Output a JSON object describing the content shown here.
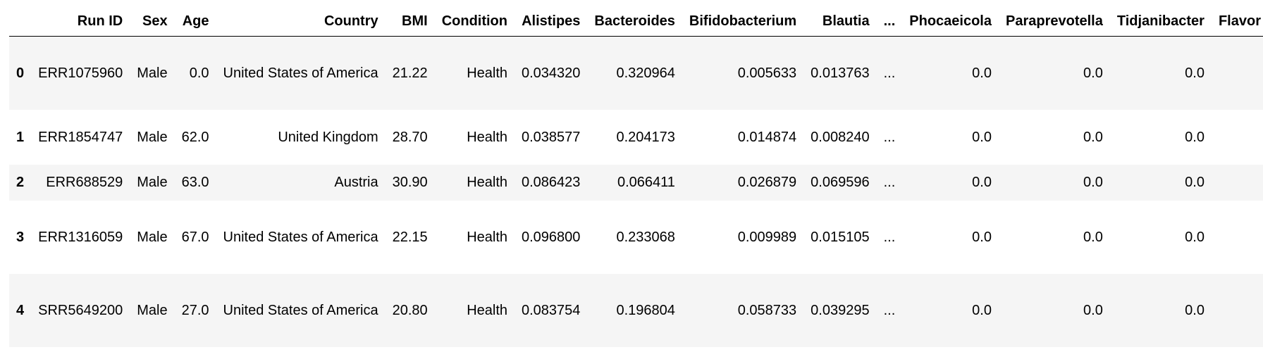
{
  "table": {
    "columns": [
      "Run ID",
      "Sex",
      "Age",
      "Country",
      "BMI",
      "Condition",
      "Alistipes",
      "Bacteroides",
      "Bifidobacterium",
      "Blautia",
      "...",
      "Phocaeicola",
      "Paraprevotella",
      "Tidjanibacter",
      "Flavor"
    ],
    "rows": [
      {
        "index": "0",
        "run_id": "ERR1075960",
        "sex": "Male",
        "age": "0.0",
        "country": "United States of America",
        "bmi": "21.22",
        "condition": "Health",
        "alistipes": "0.034320",
        "bacteroides": "0.320964",
        "bifidobacterium": "0.005633",
        "blautia": "0.013763",
        "ellipsis": "...",
        "phocaeicola": "0.0",
        "paraprevotella": "0.0",
        "tidjanibacter": "0.0"
      },
      {
        "index": "1",
        "run_id": "ERR1854747",
        "sex": "Male",
        "age": "62.0",
        "country": "United Kingdom",
        "bmi": "28.70",
        "condition": "Health",
        "alistipes": "0.038577",
        "bacteroides": "0.204173",
        "bifidobacterium": "0.014874",
        "blautia": "0.008240",
        "ellipsis": "...",
        "phocaeicola": "0.0",
        "paraprevotella": "0.0",
        "tidjanibacter": "0.0"
      },
      {
        "index": "2",
        "run_id": "ERR688529",
        "sex": "Male",
        "age": "63.0",
        "country": "Austria",
        "bmi": "30.90",
        "condition": "Health",
        "alistipes": "0.086423",
        "bacteroides": "0.066411",
        "bifidobacterium": "0.026879",
        "blautia": "0.069596",
        "ellipsis": "...",
        "phocaeicola": "0.0",
        "paraprevotella": "0.0",
        "tidjanibacter": "0.0"
      },
      {
        "index": "3",
        "run_id": "ERR1316059",
        "sex": "Male",
        "age": "67.0",
        "country": "United States of America",
        "bmi": "22.15",
        "condition": "Health",
        "alistipes": "0.096800",
        "bacteroides": "0.233068",
        "bifidobacterium": "0.009989",
        "blautia": "0.015105",
        "ellipsis": "...",
        "phocaeicola": "0.0",
        "paraprevotella": "0.0",
        "tidjanibacter": "0.0"
      },
      {
        "index": "4",
        "run_id": "SRR5649200",
        "sex": "Male",
        "age": "27.0",
        "country": "United States of America",
        "bmi": "20.80",
        "condition": "Health",
        "alistipes": "0.083754",
        "bacteroides": "0.196804",
        "bifidobacterium": "0.058733",
        "blautia": "0.039295",
        "ellipsis": "...",
        "phocaeicola": "0.0",
        "paraprevotella": "0.0",
        "tidjanibacter": "0.0"
      }
    ]
  }
}
